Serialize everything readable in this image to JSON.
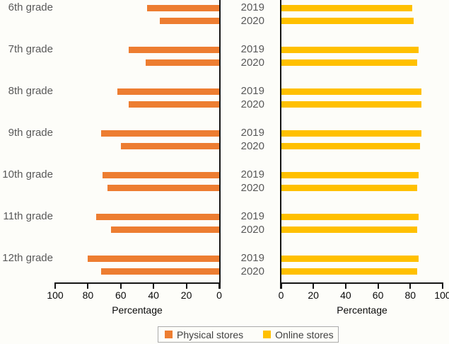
{
  "chart_data": {
    "type": "bar",
    "variant": "diverging-horizontal-grouped",
    "title": "",
    "categories": [
      "6th grade",
      "7th grade",
      "8th grade",
      "9th grade",
      "10th grade",
      "11th grade",
      "12th grade"
    ],
    "years": [
      "2019",
      "2020"
    ],
    "series": [
      {
        "name": "Physical stores",
        "side": "left",
        "color": "#ED7D31",
        "values": {
          "2019": [
            44,
            55,
            62,
            72,
            71,
            75,
            80
          ],
          "2020": [
            36,
            45,
            55,
            60,
            68,
            66,
            72
          ]
        }
      },
      {
        "name": "Online stores",
        "side": "right",
        "color": "#FFC000",
        "values": {
          "2019": [
            81,
            85,
            87,
            87,
            85,
            85,
            85
          ],
          "2020": [
            82,
            84,
            87,
            86,
            84,
            84,
            84
          ]
        }
      }
    ],
    "xlabel": "Percentage",
    "xlim": [
      0,
      100
    ],
    "left_axis_ticks": [
      "100",
      "80",
      "60",
      "40",
      "20",
      "0"
    ],
    "right_axis_ticks": [
      "0",
      "20",
      "40",
      "60",
      "80",
      "100"
    ],
    "legend_position": "bottom-center",
    "grid": false
  },
  "colors": {
    "orange": "#ED7D31",
    "yellow": "#FFC000",
    "category_text": "#595959",
    "axis_line": "#151515",
    "axis_text": "#0a0a0a",
    "legend_border": "#ababab",
    "background": "#fdfdf9"
  }
}
